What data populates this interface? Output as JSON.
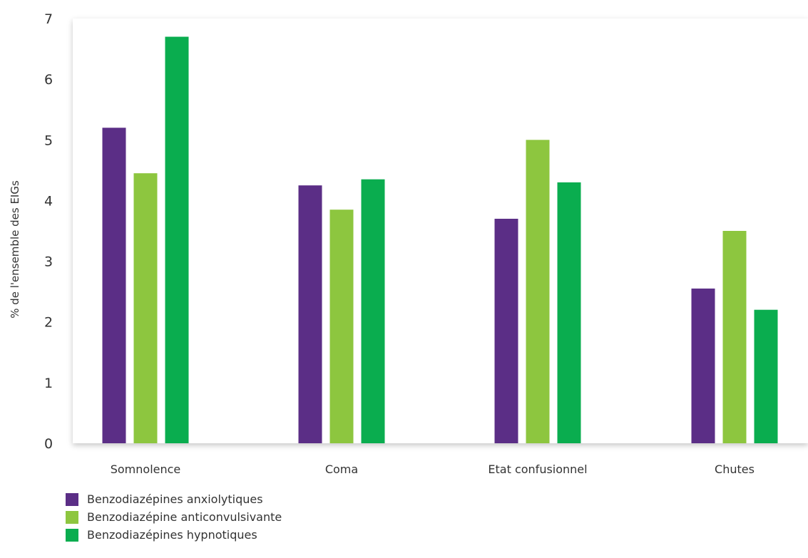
{
  "chart_data": {
    "type": "bar",
    "ylabel": "% de l'ensemble des EIGs",
    "xlabel": "",
    "ylim": [
      0,
      7
    ],
    "yticks": [
      "0",
      "1",
      "2",
      "3",
      "4",
      "5",
      "6",
      "7"
    ],
    "grid": false,
    "legend_position": "bottom-left",
    "categories": [
      "Somnolence",
      "Coma",
      "Etat confusionnel",
      "Chutes"
    ],
    "series": [
      {
        "name": "Benzodiazépines anxiolytiques",
        "color": "#5b2e86",
        "values": [
          5.2,
          4.25,
          3.7,
          2.55
        ]
      },
      {
        "name": "Benzodiazépine anticonvulsivante",
        "color": "#8dc63f",
        "values": [
          4.45,
          3.85,
          5.0,
          3.5
        ]
      },
      {
        "name": "Benzodiazépines hypnotiques",
        "color": "#0aad4f",
        "values": [
          6.7,
          4.35,
          4.3,
          2.2
        ]
      }
    ]
  }
}
